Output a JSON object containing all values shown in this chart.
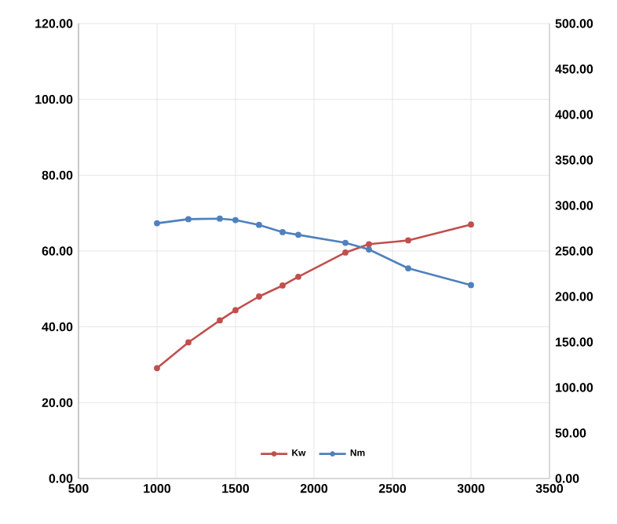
{
  "chart_data": {
    "type": "line",
    "x": [
      1000,
      1200,
      1400,
      1500,
      1650,
      1800,
      1900,
      2200,
      2350,
      2600,
      3000
    ],
    "series": [
      {
        "name": "Kw",
        "color": "#c0504d",
        "values": [
          29.1,
          35.9,
          41.7,
          44.4,
          48.0,
          50.9,
          53.2,
          59.6,
          61.8,
          62.8,
          67.0
        ]
      },
      {
        "name": "Nm",
        "color": "#4f81bd",
        "axis": "y2",
        "values": [
          280.5,
          285,
          285.6,
          284,
          278.7,
          270.7,
          267.8,
          259,
          251.7,
          231,
          212.6
        ]
      }
    ],
    "xlim": [
      500,
      3500
    ],
    "xticks": [
      500,
      1000,
      1500,
      2000,
      2500,
      3000,
      3500
    ],
    "ylim": [
      0,
      120
    ],
    "yticks": [
      {
        "value": 0,
        "label": "0.00"
      },
      {
        "value": 20,
        "label": "20.00"
      },
      {
        "value": 40,
        "label": "40.00"
      },
      {
        "value": 60,
        "label": "60.00"
      },
      {
        "value": 80,
        "label": "80.00"
      },
      {
        "value": 100,
        "label": "100.00"
      },
      {
        "value": 120,
        "label": "120.00"
      }
    ],
    "y2lim": [
      0,
      500
    ],
    "y2ticks": [
      {
        "value": 0,
        "label": "0.00"
      },
      {
        "value": 50,
        "label": "50.00"
      },
      {
        "value": 100,
        "label": "100.00"
      },
      {
        "value": 150,
        "label": "150.00"
      },
      {
        "value": 200,
        "label": "200.00"
      },
      {
        "value": 250,
        "label": "250.00"
      },
      {
        "value": 300,
        "label": "300.00"
      },
      {
        "value": 350,
        "label": "350.00"
      },
      {
        "value": 400,
        "label": "400.00"
      },
      {
        "value": 450,
        "label": "450.00"
      },
      {
        "value": 500,
        "label": "500.00"
      }
    ],
    "grid": true,
    "legend": "bottom",
    "marker": "circle",
    "line_style": "solid"
  }
}
